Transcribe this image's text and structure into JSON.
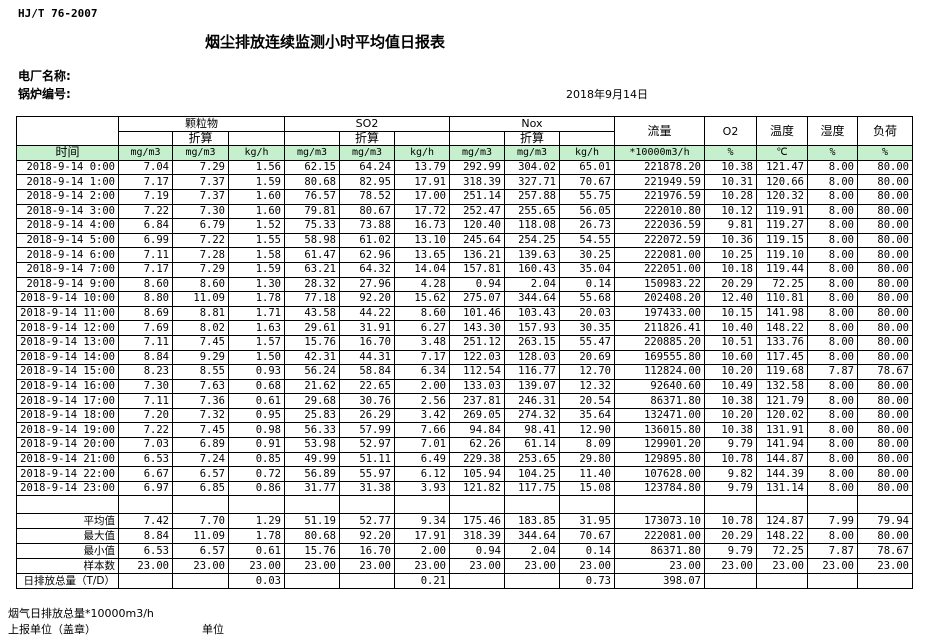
{
  "header": {
    "standard": "HJ/T  76-2007",
    "title": "烟尘排放连续监测小时平均值日报表",
    "plant_label": "电厂名称:",
    "boiler_label": "锅炉编号:",
    "date": "2018年9月14日"
  },
  "columns": {
    "particulate": "颗粒物",
    "so2": "SO2",
    "nox": "Nox",
    "converted": "折算",
    "flow": "流量",
    "o2": "O2",
    "temp": "温度",
    "humidity": "湿度",
    "load": "负荷",
    "time": "时间",
    "units": [
      "mg/m3",
      "mg/m3",
      "kg/h",
      "mg/m3",
      "mg/m3",
      "kg/h",
      "mg/m3",
      "mg/m3",
      "kg/h",
      "*10000m3/h",
      "%",
      "℃",
      "%",
      "%"
    ]
  },
  "rows": [
    [
      "2018-9-14 0:00",
      "7.04",
      "7.29",
      "1.56",
      "62.15",
      "64.24",
      "13.79",
      "292.99",
      "304.02",
      "65.01",
      "221878.20",
      "10.38",
      "121.47",
      "8.00",
      "80.00"
    ],
    [
      "2018-9-14 1:00",
      "7.17",
      "7.37",
      "1.59",
      "80.68",
      "82.95",
      "17.91",
      "318.39",
      "327.71",
      "70.67",
      "221949.59",
      "10.31",
      "120.66",
      "8.00",
      "80.00"
    ],
    [
      "2018-9-14 2:00",
      "7.19",
      "7.37",
      "1.60",
      "76.57",
      "78.52",
      "17.00",
      "251.14",
      "257.88",
      "55.75",
      "221976.59",
      "10.28",
      "120.32",
      "8.00",
      "80.00"
    ],
    [
      "2018-9-14 3:00",
      "7.22",
      "7.30",
      "1.60",
      "79.81",
      "80.67",
      "17.72",
      "252.47",
      "255.65",
      "56.05",
      "222010.80",
      "10.12",
      "119.91",
      "8.00",
      "80.00"
    ],
    [
      "2018-9-14 4:00",
      "6.84",
      "6.79",
      "1.52",
      "75.33",
      "73.88",
      "16.73",
      "120.40",
      "118.08",
      "26.73",
      "222036.59",
      "9.81",
      "119.27",
      "8.00",
      "80.00"
    ],
    [
      "2018-9-14 5:00",
      "6.99",
      "7.22",
      "1.55",
      "58.98",
      "61.02",
      "13.10",
      "245.64",
      "254.25",
      "54.55",
      "222072.59",
      "10.36",
      "119.15",
      "8.00",
      "80.00"
    ],
    [
      "2018-9-14 6:00",
      "7.11",
      "7.28",
      "1.58",
      "61.47",
      "62.96",
      "13.65",
      "136.21",
      "139.63",
      "30.25",
      "222081.00",
      "10.25",
      "119.10",
      "8.00",
      "80.00"
    ],
    [
      "2018-9-14 7:00",
      "7.17",
      "7.29",
      "1.59",
      "63.21",
      "64.32",
      "14.04",
      "157.81",
      "160.43",
      "35.04",
      "222051.00",
      "10.18",
      "119.44",
      "8.00",
      "80.00"
    ],
    [
      "2018-9-14 9:00",
      "8.60",
      "8.60",
      "1.30",
      "28.32",
      "27.96",
      "4.28",
      "0.94",
      "2.04",
      "0.14",
      "150983.22",
      "20.29",
      "72.25",
      "8.00",
      "80.00"
    ],
    [
      "2018-9-14 10:00",
      "8.80",
      "11.09",
      "1.78",
      "77.18",
      "92.20",
      "15.62",
      "275.07",
      "344.64",
      "55.68",
      "202408.20",
      "12.40",
      "110.81",
      "8.00",
      "80.00"
    ],
    [
      "2018-9-14 11:00",
      "8.69",
      "8.81",
      "1.71",
      "43.58",
      "44.22",
      "8.60",
      "101.46",
      "103.43",
      "20.03",
      "197433.00",
      "10.15",
      "141.98",
      "8.00",
      "80.00"
    ],
    [
      "2018-9-14 12:00",
      "7.69",
      "8.02",
      "1.63",
      "29.61",
      "31.91",
      "6.27",
      "143.30",
      "157.93",
      "30.35",
      "211826.41",
      "10.40",
      "148.22",
      "8.00",
      "80.00"
    ],
    [
      "2018-9-14 13:00",
      "7.11",
      "7.45",
      "1.57",
      "15.76",
      "16.70",
      "3.48",
      "251.12",
      "263.15",
      "55.47",
      "220885.20",
      "10.51",
      "133.76",
      "8.00",
      "80.00"
    ],
    [
      "2018-9-14 14:00",
      "8.84",
      "9.29",
      "1.50",
      "42.31",
      "44.31",
      "7.17",
      "122.03",
      "128.03",
      "20.69",
      "169555.80",
      "10.60",
      "117.45",
      "8.00",
      "80.00"
    ],
    [
      "2018-9-14 15:00",
      "8.23",
      "8.55",
      "0.93",
      "56.24",
      "58.84",
      "6.34",
      "112.54",
      "116.77",
      "12.70",
      "112824.00",
      "10.20",
      "119.68",
      "7.87",
      "78.67"
    ],
    [
      "2018-9-14 16:00",
      "7.30",
      "7.63",
      "0.68",
      "21.62",
      "22.65",
      "2.00",
      "133.03",
      "139.07",
      "12.32",
      "92640.60",
      "10.49",
      "132.58",
      "8.00",
      "80.00"
    ],
    [
      "2018-9-14 17:00",
      "7.11",
      "7.36",
      "0.61",
      "29.68",
      "30.76",
      "2.56",
      "237.81",
      "246.31",
      "20.54",
      "86371.80",
      "10.38",
      "121.79",
      "8.00",
      "80.00"
    ],
    [
      "2018-9-14 18:00",
      "7.20",
      "7.32",
      "0.95",
      "25.83",
      "26.29",
      "3.42",
      "269.05",
      "274.32",
      "35.64",
      "132471.00",
      "10.20",
      "120.02",
      "8.00",
      "80.00"
    ],
    [
      "2018-9-14 19:00",
      "7.22",
      "7.45",
      "0.98",
      "56.33",
      "57.99",
      "7.66",
      "94.84",
      "98.41",
      "12.90",
      "136015.80",
      "10.38",
      "131.91",
      "8.00",
      "80.00"
    ],
    [
      "2018-9-14 20:00",
      "7.03",
      "6.89",
      "0.91",
      "53.98",
      "52.97",
      "7.01",
      "62.26",
      "61.14",
      "8.09",
      "129901.20",
      "9.79",
      "141.94",
      "8.00",
      "80.00"
    ],
    [
      "2018-9-14 21:00",
      "6.53",
      "7.24",
      "0.85",
      "49.99",
      "51.11",
      "6.49",
      "229.38",
      "253.65",
      "29.80",
      "129895.80",
      "10.78",
      "144.87",
      "8.00",
      "80.00"
    ],
    [
      "2018-9-14 22:00",
      "6.67",
      "6.57",
      "0.72",
      "56.89",
      "55.97",
      "6.12",
      "105.94",
      "104.25",
      "11.40",
      "107628.00",
      "9.82",
      "144.39",
      "8.00",
      "80.00"
    ],
    [
      "2018-9-14 23:00",
      "6.97",
      "6.85",
      "0.86",
      "31.77",
      "31.38",
      "3.93",
      "121.82",
      "117.75",
      "15.08",
      "123784.80",
      "9.79",
      "131.14",
      "8.00",
      "80.00"
    ]
  ],
  "summary": [
    [
      "平均值",
      "7.42",
      "7.70",
      "1.29",
      "51.19",
      "52.77",
      "9.34",
      "175.46",
      "183.85",
      "31.95",
      "173073.10",
      "10.78",
      "124.87",
      "7.99",
      "79.94"
    ],
    [
      "最大值",
      "8.84",
      "11.09",
      "1.78",
      "80.68",
      "92.20",
      "17.91",
      "318.39",
      "344.64",
      "70.67",
      "222081.00",
      "20.29",
      "148.22",
      "8.00",
      "80.00"
    ],
    [
      "最小值",
      "6.53",
      "6.57",
      "0.61",
      "15.76",
      "16.70",
      "2.00",
      "0.94",
      "2.04",
      "0.14",
      "86371.80",
      "9.79",
      "72.25",
      "7.87",
      "78.67"
    ],
    [
      "样本数",
      "23.00",
      "23.00",
      "23.00",
      "23.00",
      "23.00",
      "23.00",
      "23.00",
      "23.00",
      "23.00",
      "23.00",
      "23.00",
      "23.00",
      "23.00",
      "23.00"
    ],
    [
      "日排放总量（T/D）",
      "",
      "",
      "0.03",
      "",
      "",
      "0.21",
      "",
      "",
      "0.73",
      "398.07",
      "",
      "",
      "",
      ""
    ]
  ],
  "footer": {
    "flue_total": "烟气日排放总量*10000m3/h",
    "report_unit": "上报单位（盖章）",
    "unit": "单位"
  }
}
